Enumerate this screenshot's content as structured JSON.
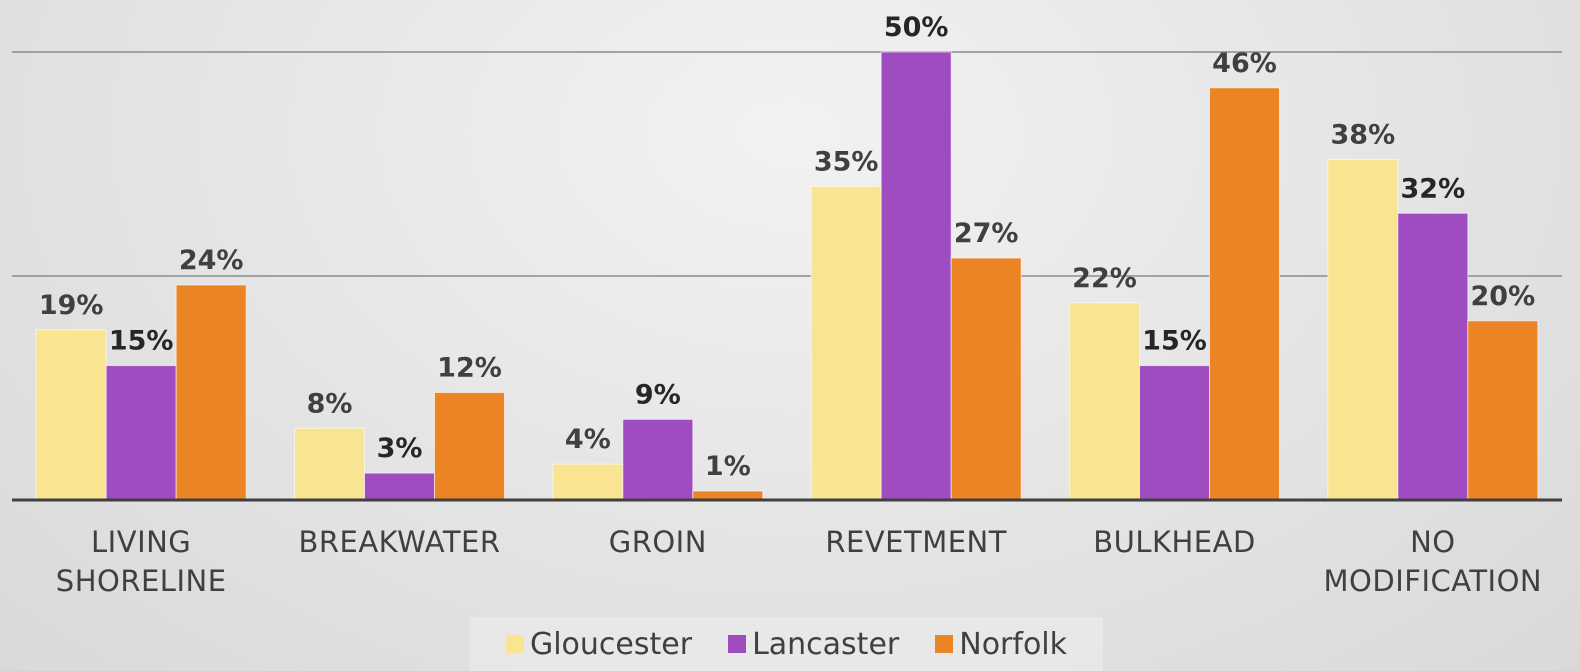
{
  "chart_data": {
    "type": "bar",
    "categories": [
      "LIVING SHORELINE",
      "BREAKWATER",
      "GROIN",
      "REVETMENT",
      "BULKHEAD",
      "NO MODIFICATION"
    ],
    "series": [
      {
        "name": "Gloucester",
        "color": "#f8e491",
        "values": [
          19,
          8,
          4,
          35,
          22,
          38
        ],
        "value_labels": [
          "19%",
          "8%",
          "4%",
          "35%",
          "22%",
          "38%"
        ]
      },
      {
        "name": "Lancaster",
        "color": "#a04cc1",
        "values": [
          15,
          3,
          9,
          50,
          15,
          32
        ],
        "value_labels": [
          "15%",
          "3%",
          "9%",
          "50%",
          "15%",
          "32%"
        ]
      },
      {
        "name": "Norfolk",
        "color": "#eb8424",
        "values": [
          24,
          12,
          1,
          27,
          46,
          20
        ],
        "value_labels": [
          "24%",
          "12%",
          "1%",
          "27%",
          "46%",
          "20%"
        ]
      }
    ],
    "ylim": [
      0,
      50
    ],
    "yticks": [
      0,
      25,
      50
    ],
    "grid": true
  }
}
